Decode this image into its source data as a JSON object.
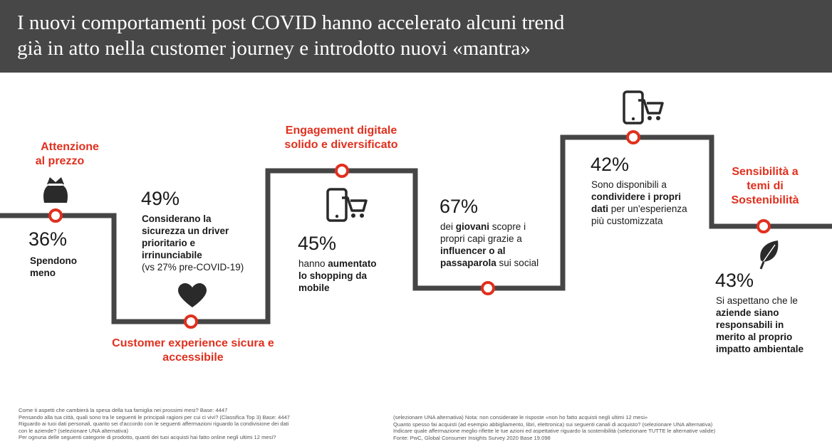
{
  "title": {
    "line1": "I nuovi comportamenti post COVID hanno accelerato alcuni trend",
    "line2": "già in atto nella customer journey e introdotto nuovi «mantra»"
  },
  "colors": {
    "header_bg": "#474747",
    "accent": "#e0301e",
    "path": "#454545"
  },
  "stages": [
    {
      "heading": [
        "Attenzione",
        "al prezzo"
      ],
      "icon": "wallet-icon",
      "percent": "36%",
      "desc_bold": [
        "Spendono",
        "meno"
      ]
    },
    {
      "heading": [
        "Customer experience sicura e",
        "accessibile"
      ],
      "icon": "heart-icon",
      "percent": "49%",
      "desc_bold": [
        "Considerano la",
        "sicurezza un driver",
        "prioritario e",
        "irrinunciabile"
      ],
      "desc_note": "(vs 27% pre-COVID-19)"
    },
    {
      "heading": [
        "Engagement digitale",
        "solido e diversificato"
      ],
      "icon": "mobile-cart-icon",
      "percent": "45%",
      "desc_l1_pre": "hanno ",
      "desc_l1_bold": "aumentato",
      "desc_rest_bold": [
        "lo shopping da",
        "mobile"
      ]
    },
    {
      "percent": "67%",
      "desc_l1_pre": "dei ",
      "desc_l1_bold": "giovani",
      "desc_l1_post": " scopre i",
      "desc_l2": "propri capi grazie a",
      "desc_l3_bold": "influencer o al",
      "desc_l4_bold": "passaparola",
      "desc_l4_post": " sui social"
    },
    {
      "icon": "mobile-cart-icon",
      "percent": "42%",
      "desc_l1": "Sono disponibili a",
      "desc_l2_bold": "condividere i propri",
      "desc_l3_bold": "dati",
      "desc_l3_post": " per un'esperienza",
      "desc_l4": "più customizzata"
    },
    {
      "heading": [
        "Sensibilità a",
        "temi di",
        "Sostenibilità"
      ],
      "icon": "leaf-icon",
      "percent": "43%",
      "desc_l1": "Si aspettano che le",
      "desc_rest_bold": [
        "aziende siano",
        "responsabili in",
        "merito al proprio",
        "impatto ambientale"
      ]
    }
  ],
  "footnotes": {
    "left": [
      "Come ti aspetti che cambierà la spesa della tua famiglia nei prossimi mesi? Base: 4447",
      "Pensando alla tua città, quali sono tra le seguenti le principali ragioni per cui ci vivi? (Classifica Top 3) Base: 4447",
      "Riguardo ai tuoi dati personali, quanto sei d'accordo con le seguenti affermazioni riguardo la condivisione dei dati",
      "con le aziende? (selezionare UNA alternativa)",
      "Per ognuna delle seguenti categorie di prodotto, quanti dei tuoi acquisti hai fatto online negli ultimi 12 mesi?"
    ],
    "right": [
      "(selezionare UNA alternativa) Nota: non considerate le risposte «non ho fatto acquisti negli ultimi 12 mesi»",
      "Quanto spesso fai acquisti (ad esempio abbigliamento, libri, elettronica) sui seguenti canali di acquisto? (selezionare UNA alternativa)",
      "Indicare quale affermazione meglio riflette le tue azioni ed aspettative riguardo la sostenibilità (selezionare TUTTE le alternative valide)",
      "Fonte: PwC, Global Consumer Insights Survey 2020 Base 19.098"
    ]
  }
}
